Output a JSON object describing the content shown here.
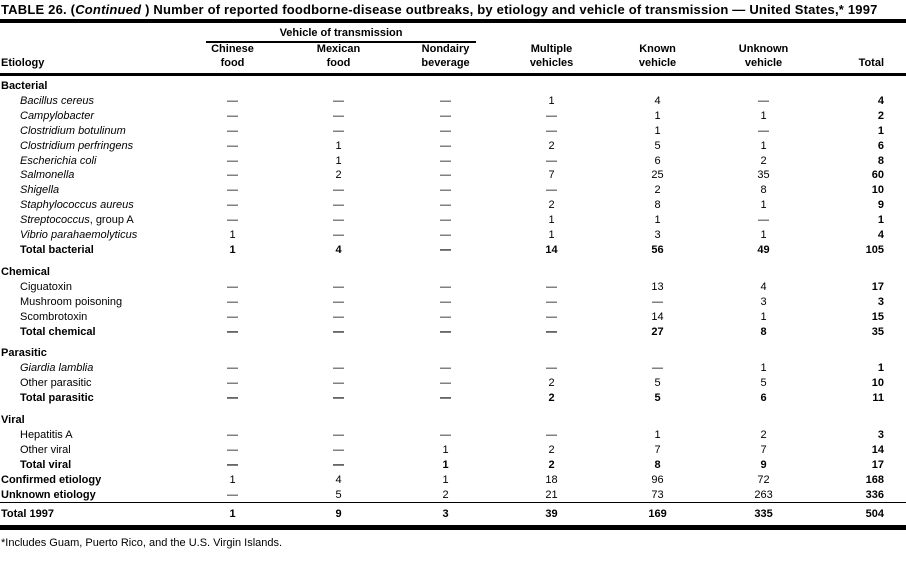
{
  "title": {
    "part1": "TABLE 26. (",
    "continued": "Continued ",
    "part2": ") Number of reported foodborne-disease outbreaks, by etiology and vehicle of transmission — United States,* 1997"
  },
  "footnote": "*Includes Guam, Puerto Rico, and the U.S. Virgin Islands.",
  "table": {
    "spanner": "Vehicle of transmission",
    "etiology_header": "Etiology",
    "columns": [
      {
        "line1": "Chinese",
        "line2": "food"
      },
      {
        "line1": "Mexican",
        "line2": "food"
      },
      {
        "line1": "Nondairy",
        "line2": "beverage"
      },
      {
        "line1": "Multiple",
        "line2": "vehicles"
      },
      {
        "line1": "Known",
        "line2": "vehicle"
      },
      {
        "line1": "Unknown",
        "line2": "vehicle"
      },
      {
        "line1": "",
        "line2": "Total"
      }
    ],
    "rows": [
      {
        "type": "section",
        "label": "Bacterial"
      },
      {
        "type": "data",
        "italic": true,
        "label": "Bacillus cereus",
        "values": [
          "—",
          "—",
          "—",
          "1",
          "4",
          "—",
          "4"
        ]
      },
      {
        "type": "data",
        "italic": true,
        "label": "Campylobacter",
        "values": [
          "—",
          "—",
          "—",
          "—",
          "1",
          "1",
          "2"
        ]
      },
      {
        "type": "data",
        "italic": true,
        "label": "Clostridium botulinum",
        "values": [
          "—",
          "—",
          "—",
          "—",
          "1",
          "—",
          "1"
        ]
      },
      {
        "type": "data",
        "italic": true,
        "label": "Clostridium perfringens",
        "values": [
          "—",
          "1",
          "—",
          "2",
          "5",
          "1",
          "6"
        ]
      },
      {
        "type": "data",
        "italic": true,
        "label": "Escherichia coli",
        "values": [
          "—",
          "1",
          "—",
          "—",
          "6",
          "2",
          "8"
        ]
      },
      {
        "type": "data",
        "italic": true,
        "label": "Salmonella",
        "values": [
          "—",
          "2",
          "—",
          "7",
          "25",
          "35",
          "60"
        ]
      },
      {
        "type": "data",
        "italic": true,
        "label": "Shigella",
        "values": [
          "—",
          "—",
          "—",
          "—",
          "2",
          "8",
          "10"
        ]
      },
      {
        "type": "data",
        "italic": true,
        "label": "Staphylococcus aureus",
        "values": [
          "—",
          "—",
          "—",
          "2",
          "8",
          "1",
          "9"
        ]
      },
      {
        "type": "data",
        "italic": true,
        "label": "Streptococcus",
        "label_suffix": ", group A",
        "values": [
          "—",
          "—",
          "—",
          "1",
          "1",
          "—",
          "1"
        ]
      },
      {
        "type": "data",
        "italic": true,
        "label": "Vibrio parahaemolyticus",
        "values": [
          "1",
          "—",
          "—",
          "1",
          "3",
          "1",
          "4"
        ]
      },
      {
        "type": "subtotal",
        "label": "Total bacterial",
        "values": [
          "1",
          "4",
          "—",
          "14",
          "56",
          "49",
          "105"
        ]
      },
      {
        "type": "section",
        "label": "Chemical"
      },
      {
        "type": "data",
        "italic": false,
        "label": "Ciguatoxin",
        "values": [
          "—",
          "—",
          "—",
          "—",
          "13",
          "4",
          "17"
        ]
      },
      {
        "type": "data",
        "italic": false,
        "label": "Mushroom poisoning",
        "values": [
          "—",
          "—",
          "—",
          "—",
          "—",
          "3",
          "3"
        ]
      },
      {
        "type": "data",
        "italic": false,
        "label": "Scombrotoxin",
        "values": [
          "—",
          "—",
          "—",
          "—",
          "14",
          "1",
          "15"
        ]
      },
      {
        "type": "subtotal",
        "label": "Total chemical",
        "values": [
          "—",
          "—",
          "—",
          "—",
          "27",
          "8",
          "35"
        ]
      },
      {
        "type": "section",
        "label": "Parasitic"
      },
      {
        "type": "data",
        "italic": true,
        "label": "Giardia lamblia",
        "values": [
          "—",
          "—",
          "—",
          "—",
          "—",
          "1",
          "1"
        ]
      },
      {
        "type": "data",
        "italic": false,
        "label": "Other parasitic",
        "values": [
          "—",
          "—",
          "—",
          "2",
          "5",
          "5",
          "10"
        ]
      },
      {
        "type": "subtotal",
        "label": "Total parasitic",
        "values": [
          "—",
          "—",
          "—",
          "2",
          "5",
          "6",
          "11"
        ]
      },
      {
        "type": "section",
        "label": "Viral"
      },
      {
        "type": "data",
        "italic": false,
        "label": "Hepatitis A",
        "values": [
          "—",
          "—",
          "—",
          "—",
          "1",
          "2",
          "3"
        ]
      },
      {
        "type": "data",
        "italic": false,
        "label": "Other viral",
        "values": [
          "—",
          "—",
          "1",
          "2",
          "7",
          "7",
          "14"
        ]
      },
      {
        "type": "subtotal",
        "label": "Total viral",
        "values": [
          "—",
          "—",
          "1",
          "2",
          "8",
          "9",
          "17"
        ]
      },
      {
        "type": "summary",
        "label": "Confirmed etiology",
        "values": [
          "1",
          "4",
          "1",
          "18",
          "96",
          "72",
          "168"
        ]
      },
      {
        "type": "summary",
        "label": "Unknown etiology",
        "values": [
          "—",
          "5",
          "2",
          "21",
          "73",
          "263",
          "336"
        ]
      },
      {
        "type": "grand",
        "label": "Total 1997",
        "values": [
          "1",
          "9",
          "3",
          "39",
          "169",
          "335",
          "504"
        ]
      }
    ]
  }
}
